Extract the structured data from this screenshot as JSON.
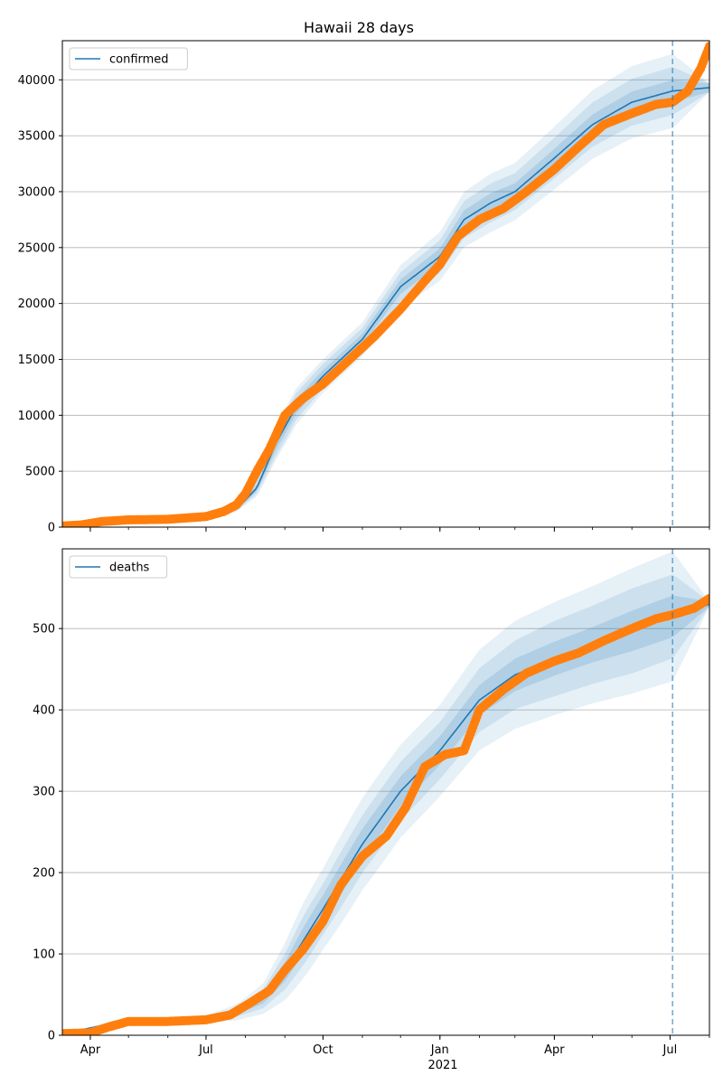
{
  "title": "Hawaii 28 days",
  "colors": {
    "model": "#1f77b4",
    "observed": "#ff7f0e",
    "band": "#1f77b4",
    "grid": "#b0b0b0"
  },
  "x_tick_labels": [
    "Apr",
    "Jul",
    "Oct",
    "Jan",
    "Apr",
    "Jul"
  ],
  "x_year_label": "2021",
  "chart_data": [
    {
      "type": "line",
      "name": "confirmed",
      "legend": "confirmed",
      "legend_position": "top-left",
      "grid": "horizontal",
      "xlim": [
        "2020-03-10",
        "2021-08-01"
      ],
      "ylim": [
        0,
        43500
      ],
      "yticks": [
        0,
        5000,
        10000,
        15000,
        20000,
        25000,
        30000,
        35000,
        40000
      ],
      "forecast_start": "2021-07-03",
      "model": {
        "x": [
          "2020-03-10",
          "2020-04-15",
          "2020-06-01",
          "2020-07-01",
          "2020-07-25",
          "2020-08-10",
          "2020-08-25",
          "2020-09-10",
          "2020-10-01",
          "2020-11-01",
          "2020-12-01",
          "2021-01-01",
          "2021-01-20",
          "2021-02-10",
          "2021-03-01",
          "2021-04-01",
          "2021-05-01",
          "2021-06-01",
          "2021-07-03",
          "2021-08-01"
        ],
        "y": [
          100,
          500,
          700,
          900,
          1600,
          3500,
          7500,
          10800,
          13500,
          16800,
          21500,
          24200,
          27500,
          29000,
          30000,
          33000,
          36000,
          38000,
          39000,
          39300
        ],
        "band_inner": [
          0.03,
          0.03,
          0.03,
          0.04,
          0.05,
          0.08,
          0.08,
          0.06,
          0.04,
          0.03,
          0.03,
          0.03,
          0.03,
          0.03,
          0.025,
          0.025,
          0.025,
          0.025,
          0.025,
          0.01
        ],
        "band_mid": [
          0.06,
          0.06,
          0.06,
          0.08,
          0.1,
          0.15,
          0.15,
          0.11,
          0.08,
          0.06,
          0.06,
          0.06,
          0.06,
          0.06,
          0.055,
          0.055,
          0.055,
          0.055,
          0.055,
          0.01
        ],
        "band_outer": [
          0.1,
          0.1,
          0.1,
          0.12,
          0.15,
          0.22,
          0.2,
          0.15,
          0.11,
          0.09,
          0.09,
          0.09,
          0.09,
          0.09,
          0.085,
          0.085,
          0.085,
          0.085,
          0.085,
          0.01
        ]
      },
      "observed": {
        "x": [
          "2020-03-10",
          "2020-03-25",
          "2020-04-10",
          "2020-05-01",
          "2020-06-01",
          "2020-07-01",
          "2020-07-15",
          "2020-07-25",
          "2020-08-01",
          "2020-08-10",
          "2020-08-20",
          "2020-09-01",
          "2020-09-15",
          "2020-10-01",
          "2020-10-20",
          "2020-11-10",
          "2020-12-01",
          "2020-12-20",
          "2021-01-01",
          "2021-01-15",
          "2021-02-01",
          "2021-02-20",
          "2021-03-10",
          "2021-04-01",
          "2021-04-20",
          "2021-05-10",
          "2021-06-01",
          "2021-06-20",
          "2021-07-03",
          "2021-07-15",
          "2021-07-25",
          "2021-08-01"
        ],
        "y": [
          100,
          200,
          500,
          650,
          700,
          950,
          1400,
          2000,
          3000,
          5000,
          7000,
          10000,
          11500,
          12800,
          14800,
          17000,
          19500,
          22000,
          23500,
          26000,
          27500,
          28500,
          30000,
          32000,
          34000,
          36000,
          37000,
          37800,
          38000,
          39000,
          41000,
          43000
        ]
      }
    },
    {
      "type": "line",
      "name": "deaths",
      "legend": "deaths",
      "legend_position": "top-left",
      "grid": "horizontal",
      "xlim": [
        "2020-03-10",
        "2021-08-01"
      ],
      "ylim": [
        0,
        598
      ],
      "yticks": [
        0,
        100,
        200,
        300,
        400,
        500
      ],
      "forecast_start": "2021-07-03",
      "model": {
        "x": [
          "2020-03-10",
          "2020-04-20",
          "2020-07-01",
          "2020-07-25",
          "2020-08-15",
          "2020-09-01",
          "2020-09-15",
          "2020-10-01",
          "2020-11-01",
          "2020-12-01",
          "2021-01-01",
          "2021-02-01",
          "2021-03-01",
          "2021-04-01",
          "2021-05-01",
          "2021-06-01",
          "2021-07-03",
          "2021-08-01"
        ],
        "y": [
          2,
          15,
          20,
          28,
          45,
          78,
          115,
          155,
          235,
          300,
          350,
          412,
          443,
          463,
          480,
          497,
          515,
          530
        ],
        "band_inner": [
          0.05,
          0.06,
          0.07,
          0.1,
          0.13,
          0.15,
          0.14,
          0.11,
          0.08,
          0.06,
          0.05,
          0.045,
          0.045,
          0.045,
          0.045,
          0.05,
          0.05,
          0.005
        ],
        "band_mid": [
          0.1,
          0.12,
          0.14,
          0.2,
          0.26,
          0.28,
          0.26,
          0.2,
          0.15,
          0.12,
          0.1,
          0.095,
          0.095,
          0.1,
          0.1,
          0.105,
          0.1,
          0.005
        ],
        "band_outer": [
          0.18,
          0.22,
          0.25,
          0.35,
          0.42,
          0.45,
          0.4,
          0.32,
          0.24,
          0.19,
          0.16,
          0.15,
          0.15,
          0.15,
          0.15,
          0.155,
          0.155,
          0.005
        ]
      },
      "observed": {
        "x": [
          "2020-03-10",
          "2020-04-01",
          "2020-04-15",
          "2020-05-01",
          "2020-06-01",
          "2020-07-01",
          "2020-07-20",
          "2020-08-05",
          "2020-08-20",
          "2020-09-01",
          "2020-09-15",
          "2020-10-01",
          "2020-10-15",
          "2020-11-01",
          "2020-11-20",
          "2020-12-05",
          "2020-12-20",
          "2021-01-05",
          "2021-01-20",
          "2021-02-01",
          "2021-02-20",
          "2021-03-10",
          "2021-04-01",
          "2021-04-20",
          "2021-05-10",
          "2021-06-01",
          "2021-06-20",
          "2021-07-03",
          "2021-07-20",
          "2021-08-01"
        ],
        "y": [
          2,
          3,
          10,
          17,
          17,
          19,
          25,
          40,
          55,
          80,
          105,
          140,
          185,
          220,
          245,
          280,
          330,
          345,
          350,
          400,
          425,
          445,
          460,
          470,
          485,
          500,
          512,
          517,
          525,
          537
        ]
      }
    }
  ]
}
